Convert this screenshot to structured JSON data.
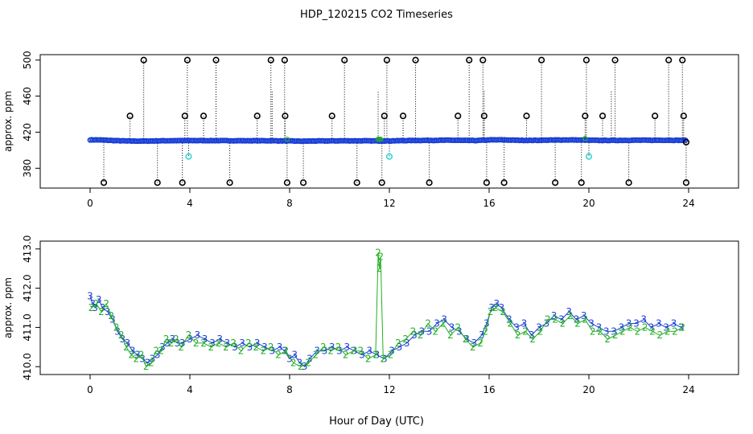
{
  "title": "HDP_120215  CO2 Timeseries",
  "xlabel": "Hour of Day (UTC)",
  "chart_data": [
    {
      "type": "scatter",
      "title": "HDP_120215  CO2 Timeseries",
      "ylabel": "approx. ppm",
      "xlabel": "",
      "xlim": [
        -2,
        26
      ],
      "ylim": [
        358,
        506
      ],
      "xticks": [
        0,
        4,
        8,
        12,
        16,
        20,
        24
      ],
      "yticks": [
        380,
        420,
        460,
        500
      ],
      "grid": false,
      "legend": "none",
      "colors": {
        "main": "#1a3fd6",
        "outlier": "#000000",
        "flag": "#3ad6d6",
        "green": "#22b022"
      },
      "baseline": [
        [
          0.0,
          411.5
        ],
        [
          0.5,
          411.3
        ],
        [
          1.0,
          410.6
        ],
        [
          1.5,
          410.2
        ],
        [
          2.0,
          410.1
        ],
        [
          2.5,
          410.2
        ],
        [
          3.0,
          410.5
        ],
        [
          3.5,
          410.6
        ],
        [
          4.0,
          410.7
        ],
        [
          5.0,
          410.6
        ],
        [
          6.0,
          410.5
        ],
        [
          7.0,
          410.5
        ],
        [
          7.5,
          410.4
        ],
        [
          8.0,
          410.2
        ],
        [
          8.5,
          410.0
        ],
        [
          9.0,
          410.2
        ],
        [
          10.0,
          410.4
        ],
        [
          11.0,
          410.4
        ],
        [
          11.5,
          410.3
        ],
        [
          12.0,
          410.3
        ],
        [
          12.5,
          410.6
        ],
        [
          13.0,
          410.8
        ],
        [
          14.0,
          411.0
        ],
        [
          14.5,
          411.1
        ],
        [
          15.0,
          410.8
        ],
        [
          15.5,
          410.7
        ],
        [
          16.0,
          411.4
        ],
        [
          16.5,
          411.5
        ],
        [
          17.0,
          411.1
        ],
        [
          17.5,
          410.9
        ],
        [
          18.0,
          411.0
        ],
        [
          18.5,
          411.2
        ],
        [
          19.0,
          411.4
        ],
        [
          19.5,
          411.3
        ],
        [
          20.0,
          411.1
        ],
        [
          20.5,
          410.8
        ],
        [
          21.0,
          410.9
        ],
        [
          21.5,
          411.0
        ],
        [
          22.0,
          411.1
        ],
        [
          22.5,
          411.0
        ],
        [
          23.0,
          411.1
        ],
        [
          23.5,
          411.0
        ],
        [
          23.8,
          411.0
        ]
      ],
      "outliers_high": [
        [
          1.6,
          438
        ],
        [
          2.15,
          500
        ],
        [
          3.8,
          438
        ],
        [
          3.9,
          500
        ],
        [
          4.55,
          438
        ],
        [
          5.05,
          500
        ],
        [
          6.7,
          438
        ],
        [
          7.25,
          500
        ],
        [
          7.8,
          500
        ],
        [
          7.82,
          438
        ],
        [
          9.7,
          438
        ],
        [
          10.2,
          500
        ],
        [
          11.8,
          438
        ],
        [
          11.9,
          500
        ],
        [
          12.55,
          438
        ],
        [
          13.05,
          500
        ],
        [
          14.75,
          438
        ],
        [
          15.2,
          500
        ],
        [
          15.75,
          500
        ],
        [
          15.8,
          438
        ],
        [
          17.5,
          438
        ],
        [
          18.1,
          500
        ],
        [
          19.85,
          438
        ],
        [
          19.9,
          500
        ],
        [
          20.55,
          438
        ],
        [
          21.05,
          500
        ],
        [
          22.65,
          438
        ],
        [
          23.2,
          500
        ],
        [
          23.75,
          500
        ],
        [
          23.8,
          438
        ]
      ],
      "outliers_low": [
        [
          0.55,
          364
        ],
        [
          2.7,
          364
        ],
        [
          3.7,
          364
        ],
        [
          5.6,
          364
        ],
        [
          7.9,
          364
        ],
        [
          8.55,
          364
        ],
        [
          10.7,
          364
        ],
        [
          11.7,
          364
        ],
        [
          13.6,
          364
        ],
        [
          15.9,
          364
        ],
        [
          16.6,
          364
        ],
        [
          18.65,
          364
        ],
        [
          19.7,
          364
        ],
        [
          21.6,
          364
        ],
        [
          23.9,
          364
        ]
      ],
      "outliers_mid": [
        [
          23.9,
          409
        ]
      ],
      "flagged": [
        [
          3.95,
          393
        ],
        [
          12.0,
          393
        ],
        [
          20.0,
          393
        ]
      ]
    },
    {
      "type": "scatter",
      "title": "",
      "ylabel": "approx. ppm",
      "xlabel": "Hour of Day (UTC)",
      "xlim": [
        -2,
        26
      ],
      "ylim": [
        409.8,
        413.2
      ],
      "xticks": [
        0,
        4,
        8,
        12,
        16,
        20,
        24
      ],
      "yticks": [
        410.0,
        411.0,
        412.0,
        413.0
      ],
      "ytick_labels": [
        "410.0",
        "411.0",
        "412.0",
        "413.0"
      ],
      "grid": false,
      "legend": "none",
      "point_labels": [
        "3",
        "2"
      ],
      "series": [
        {
          "label_char": "3",
          "color": "#1a3fd6",
          "points": [
            [
              0.0,
              411.8
            ],
            [
              0.1,
              411.6
            ],
            [
              0.2,
              411.5
            ],
            [
              0.35,
              411.7
            ],
            [
              0.5,
              411.5
            ],
            [
              0.7,
              411.4
            ],
            [
              0.9,
              411.2
            ],
            [
              1.1,
              410.9
            ],
            [
              1.3,
              410.7
            ],
            [
              1.5,
              410.6
            ],
            [
              1.7,
              410.4
            ],
            [
              1.9,
              410.3
            ],
            [
              2.1,
              410.2
            ],
            [
              2.3,
              410.1
            ],
            [
              2.5,
              410.2
            ],
            [
              2.7,
              410.3
            ],
            [
              2.9,
              410.5
            ],
            [
              3.1,
              410.6
            ],
            [
              3.3,
              410.7
            ],
            [
              3.5,
              410.6
            ],
            [
              3.7,
              410.6
            ],
            [
              4.0,
              410.7
            ],
            [
              4.3,
              410.8
            ],
            [
              4.6,
              410.7
            ],
            [
              4.9,
              410.6
            ],
            [
              5.2,
              410.7
            ],
            [
              5.5,
              410.6
            ],
            [
              5.8,
              410.5
            ],
            [
              6.1,
              410.6
            ],
            [
              6.4,
              410.5
            ],
            [
              6.7,
              410.6
            ],
            [
              7.0,
              410.5
            ],
            [
              7.3,
              410.4
            ],
            [
              7.6,
              410.5
            ],
            [
              7.8,
              410.4
            ],
            [
              8.0,
              410.2
            ],
            [
              8.2,
              410.3
            ],
            [
              8.4,
              410.1
            ],
            [
              8.6,
              410.0
            ],
            [
              8.8,
              410.2
            ],
            [
              9.1,
              410.4
            ],
            [
              9.4,
              410.4
            ],
            [
              9.7,
              410.5
            ],
            [
              10.0,
              410.4
            ],
            [
              10.3,
              410.5
            ],
            [
              10.6,
              410.4
            ],
            [
              10.9,
              410.3
            ],
            [
              11.2,
              410.4
            ],
            [
              11.5,
              410.3
            ],
            [
              11.8,
              410.2
            ],
            [
              12.1,
              410.4
            ],
            [
              12.4,
              410.5
            ],
            [
              12.7,
              410.6
            ],
            [
              13.0,
              410.8
            ],
            [
              13.3,
              410.9
            ],
            [
              13.6,
              410.9
            ],
            [
              13.9,
              411.1
            ],
            [
              14.2,
              411.2
            ],
            [
              14.5,
              411.0
            ],
            [
              14.8,
              410.9
            ],
            [
              15.1,
              410.7
            ],
            [
              15.4,
              410.6
            ],
            [
              15.7,
              410.8
            ],
            [
              15.9,
              411.1
            ],
            [
              16.1,
              411.5
            ],
            [
              16.3,
              411.6
            ],
            [
              16.5,
              411.5
            ],
            [
              16.8,
              411.2
            ],
            [
              17.1,
              411.0
            ],
            [
              17.4,
              411.1
            ],
            [
              17.7,
              410.8
            ],
            [
              18.0,
              411.0
            ],
            [
              18.3,
              411.1
            ],
            [
              18.6,
              411.3
            ],
            [
              18.9,
              411.2
            ],
            [
              19.2,
              411.4
            ],
            [
              19.5,
              411.2
            ],
            [
              19.8,
              411.3
            ],
            [
              20.1,
              411.1
            ],
            [
              20.4,
              411.0
            ],
            [
              20.7,
              410.9
            ],
            [
              21.0,
              410.9
            ],
            [
              21.3,
              411.0
            ],
            [
              21.6,
              411.1
            ],
            [
              21.9,
              411.1
            ],
            [
              22.2,
              411.2
            ],
            [
              22.5,
              411.0
            ],
            [
              22.8,
              411.1
            ],
            [
              23.1,
              411.0
            ],
            [
              23.4,
              411.1
            ],
            [
              23.7,
              411.0
            ]
          ]
        },
        {
          "label_char": "2",
          "color": "#22b022",
          "points": [
            [
              0.05,
              411.5
            ],
            [
              0.25,
              411.6
            ],
            [
              0.45,
              411.4
            ],
            [
              0.65,
              411.6
            ],
            [
              0.85,
              411.3
            ],
            [
              1.05,
              411.0
            ],
            [
              1.25,
              410.8
            ],
            [
              1.45,
              410.5
            ],
            [
              1.65,
              410.3
            ],
            [
              1.85,
              410.2
            ],
            [
              2.05,
              410.3
            ],
            [
              2.25,
              410.0
            ],
            [
              2.45,
              410.1
            ],
            [
              2.65,
              410.4
            ],
            [
              2.85,
              410.4
            ],
            [
              3.05,
              410.7
            ],
            [
              3.25,
              410.6
            ],
            [
              3.45,
              410.7
            ],
            [
              3.65,
              410.5
            ],
            [
              3.95,
              410.8
            ],
            [
              4.25,
              410.6
            ],
            [
              4.55,
              410.6
            ],
            [
              4.85,
              410.5
            ],
            [
              5.15,
              410.6
            ],
            [
              5.45,
              410.5
            ],
            [
              5.75,
              410.6
            ],
            [
              6.05,
              410.4
            ],
            [
              6.35,
              410.6
            ],
            [
              6.65,
              410.5
            ],
            [
              6.95,
              410.4
            ],
            [
              7.25,
              410.5
            ],
            [
              7.55,
              410.3
            ],
            [
              7.85,
              410.4
            ],
            [
              8.15,
              410.1
            ],
            [
              8.45,
              410.0
            ],
            [
              8.75,
              410.1
            ],
            [
              9.05,
              410.3
            ],
            [
              9.35,
              410.5
            ],
            [
              9.65,
              410.4
            ],
            [
              9.95,
              410.5
            ],
            [
              10.25,
              410.3
            ],
            [
              10.55,
              410.4
            ],
            [
              10.85,
              410.4
            ],
            [
              11.15,
              410.2
            ],
            [
              11.45,
              410.3
            ],
            [
              11.55,
              412.9
            ],
            [
              11.6,
              412.5
            ],
            [
              11.65,
              412.8
            ],
            [
              11.75,
              410.2
            ],
            [
              12.05,
              410.3
            ],
            [
              12.35,
              410.6
            ],
            [
              12.65,
              410.7
            ],
            [
              12.95,
              410.9
            ],
            [
              13.25,
              410.8
            ],
            [
              13.55,
              411.1
            ],
            [
              13.85,
              410.9
            ],
            [
              14.15,
              411.1
            ],
            [
              14.45,
              410.8
            ],
            [
              14.75,
              411.0
            ],
            [
              15.05,
              410.7
            ],
            [
              15.35,
              410.5
            ],
            [
              15.65,
              410.6
            ],
            [
              15.85,
              410.9
            ],
            [
              16.05,
              411.4
            ],
            [
              16.25,
              411.5
            ],
            [
              16.55,
              411.4
            ],
            [
              16.85,
              411.1
            ],
            [
              17.15,
              410.8
            ],
            [
              17.45,
              410.9
            ],
            [
              17.75,
              410.7
            ],
            [
              18.05,
              410.9
            ],
            [
              18.35,
              411.2
            ],
            [
              18.65,
              411.2
            ],
            [
              18.95,
              411.1
            ],
            [
              19.25,
              411.3
            ],
            [
              19.55,
              411.1
            ],
            [
              19.85,
              411.2
            ],
            [
              20.15,
              410.9
            ],
            [
              20.45,
              410.9
            ],
            [
              20.75,
              410.7
            ],
            [
              21.05,
              410.8
            ],
            [
              21.35,
              410.9
            ],
            [
              21.65,
              411.0
            ],
            [
              21.95,
              410.9
            ],
            [
              22.25,
              411.0
            ],
            [
              22.55,
              410.9
            ],
            [
              22.85,
              410.8
            ],
            [
              23.15,
              410.9
            ],
            [
              23.45,
              410.9
            ],
            [
              23.75,
              411.0
            ]
          ]
        }
      ]
    }
  ]
}
